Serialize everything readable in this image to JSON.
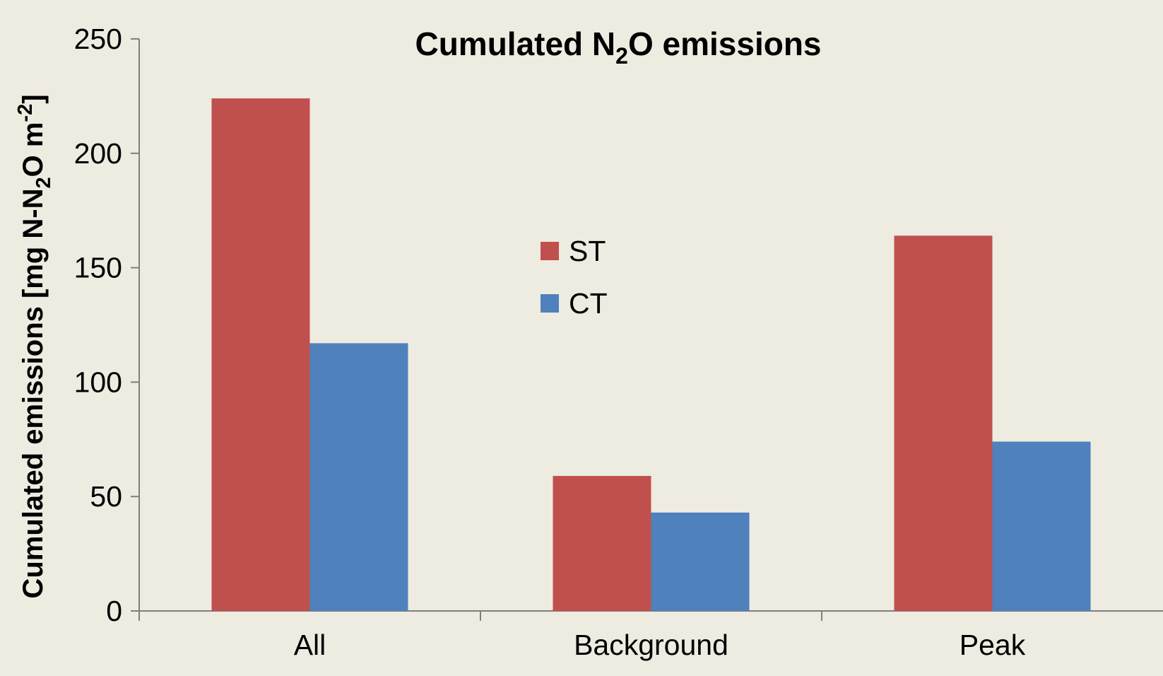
{
  "chart_data": {
    "type": "bar",
    "title": {
      "prefix": "Cumulated N",
      "subscript": "2",
      "suffix": "O emissions"
    },
    "ylabel": {
      "part1": "Cumulated emissions  [mg N-N",
      "subscript": "2",
      "part2": "O m",
      "superscript": "-2",
      "part3": "]"
    },
    "xlabel": "",
    "categories": [
      "All",
      "Background",
      "Peak"
    ],
    "series": [
      {
        "name": "ST",
        "color": "#C0504D",
        "values": [
          224,
          59,
          164
        ]
      },
      {
        "name": "CT",
        "color": "#4F81BD",
        "values": [
          117,
          43,
          74
        ]
      }
    ],
    "ylim": [
      0,
      250
    ],
    "yticks": [
      "0",
      "50",
      "100",
      "150",
      "200",
      "250"
    ],
    "grid": false,
    "legend": "center"
  }
}
